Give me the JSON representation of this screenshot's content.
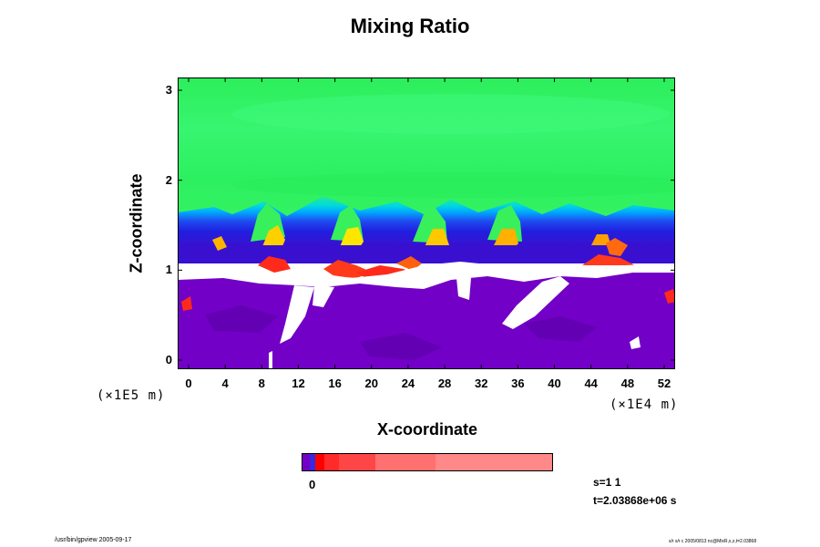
{
  "chart_data": {
    "type": "heatmap",
    "title": "Mixing Ratio",
    "xlabel": "X-coordinate",
    "ylabel": "Z-coordinate",
    "x_units": "(×1E4 m)",
    "y_units": "(×1E5 m)",
    "x_ticks": [
      "0",
      "4",
      "8",
      "12",
      "16",
      "20",
      "24",
      "28",
      "32",
      "36",
      "40",
      "44",
      "48",
      "52"
    ],
    "y_ticks": [
      "0",
      "1",
      "2",
      "3"
    ],
    "xlim": [
      0,
      52
    ],
    "ylim": [
      0,
      3
    ],
    "colorbar": {
      "label": "0",
      "colors": [
        "#7400c8",
        "#3a28dc",
        "#ff0000",
        "#ff2a2a",
        "#ff4646",
        "#ff7070",
        "#ff8888",
        "#ff9898"
      ]
    },
    "colors": {
      "upper_green": "#2af060",
      "upper_green_light": "#34f56c",
      "blue_band": "#1e1ee6",
      "cyan_band": "#00c8ff",
      "yellow": "#ffe600",
      "red_filaments": "#ff3a1a",
      "lower_purple": "#7200c6",
      "lower_purple_dark": "#6400b4"
    }
  },
  "info": {
    "stamp_s": "s=1 1",
    "stamp_t": "t=2.03868e+06 s"
  },
  "footer": {
    "left": "/usr/bin/gpview 2005-09-17",
    "right": "s/r s/r c 2005/0813 nc@MixR,x,z,t=2.03868"
  }
}
